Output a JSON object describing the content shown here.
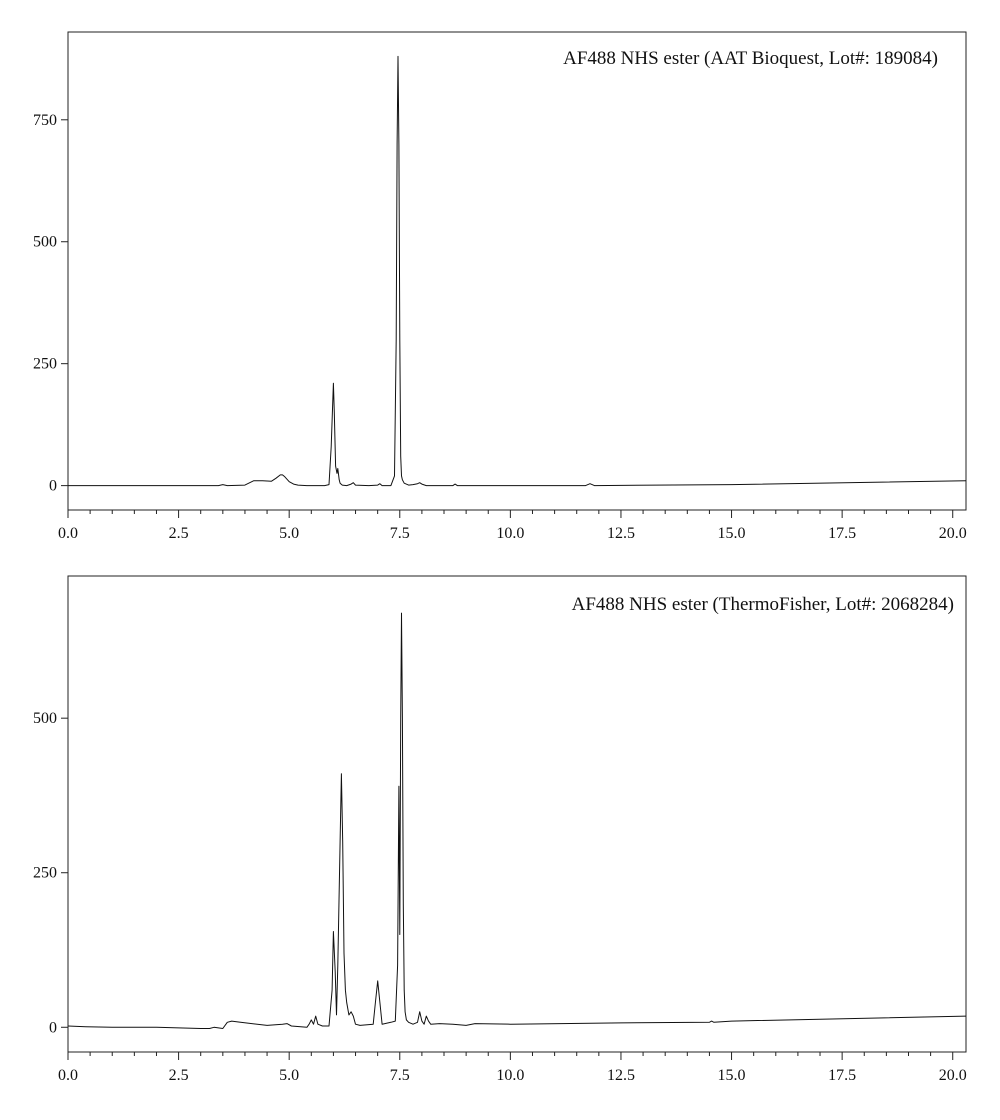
{
  "chart_data": [
    {
      "type": "line",
      "title": "AF488 NHS ester (AAT Bioquest, Lot#: 189084)",
      "xlabel": "",
      "ylabel": "",
      "xlim": [
        0,
        20.3
      ],
      "ylim": [
        -50,
        930
      ],
      "x_ticks": [
        0.0,
        2.5,
        5.0,
        7.5,
        10.0,
        12.5,
        15.0,
        17.5,
        20.0
      ],
      "x_tick_labels": [
        "0.0",
        "2.5",
        "5.0",
        "7.5",
        "10.0",
        "12.5",
        "15.0",
        "17.5",
        "20.0"
      ],
      "y_ticks": [
        0,
        250,
        500,
        750
      ],
      "y_tick_labels": [
        "0",
        "250",
        "500",
        "750"
      ],
      "grid": false,
      "series": [
        {
          "x": [
            0.0,
            3.4,
            3.5,
            3.6,
            4.0,
            4.2,
            4.4,
            4.6,
            4.7,
            4.8,
            4.85,
            4.9,
            5.0,
            5.1,
            5.2,
            5.4,
            5.6,
            5.8,
            5.9,
            5.95,
            6.0,
            6.02,
            6.05,
            6.08,
            6.1,
            6.13,
            6.15,
            6.2,
            6.3,
            6.4,
            6.45,
            6.5,
            6.8,
            7.0,
            7.05,
            7.1,
            7.3,
            7.38,
            7.42,
            7.44,
            7.46,
            7.48,
            7.5,
            7.52,
            7.54,
            7.56,
            7.6,
            7.7,
            7.8,
            7.9,
            7.95,
            8.0,
            8.1,
            8.7,
            8.75,
            8.8,
            11.7,
            11.8,
            11.9,
            15.0,
            20.3
          ],
          "y": [
            0,
            0,
            2,
            0,
            1,
            10,
            10,
            9,
            15,
            22,
            22,
            18,
            8,
            3,
            1,
            0,
            0,
            0,
            2,
            80,
            210,
            150,
            40,
            25,
            35,
            12,
            5,
            1,
            0,
            3,
            6,
            1,
            0,
            1,
            4,
            0,
            0,
            20,
            300,
            700,
            880,
            700,
            300,
            60,
            20,
            12,
            5,
            1,
            2,
            4,
            6,
            3,
            0,
            0,
            3,
            0,
            0,
            4,
            0,
            2,
            10
          ]
        }
      ]
    },
    {
      "type": "line",
      "title": "AF488 NHS ester (ThermoFisher, Lot#: 2068284)",
      "xlabel": "",
      "ylabel": "",
      "xlim": [
        0,
        20.3
      ],
      "ylim": [
        -40,
        730
      ],
      "x_ticks": [
        0.0,
        2.5,
        5.0,
        7.5,
        10.0,
        12.5,
        15.0,
        17.5,
        20.0
      ],
      "x_tick_labels": [
        "0.0",
        "2.5",
        "5.0",
        "7.5",
        "10.0",
        "12.5",
        "15.0",
        "17.5",
        "20.0"
      ],
      "y_ticks": [
        0,
        250,
        500
      ],
      "y_tick_labels": [
        "0",
        "250",
        "500"
      ],
      "grid": false,
      "series": [
        {
          "x": [
            0.0,
            0.4,
            1.0,
            2.0,
            3.0,
            3.2,
            3.3,
            3.5,
            3.6,
            3.7,
            3.9,
            4.5,
            4.85,
            4.95,
            5.05,
            5.4,
            5.45,
            5.5,
            5.55,
            5.6,
            5.65,
            5.75,
            5.9,
            5.97,
            6.0,
            6.04,
            6.07,
            6.1,
            6.15,
            6.18,
            6.21,
            6.24,
            6.27,
            6.3,
            6.35,
            6.4,
            6.45,
            6.5,
            6.6,
            6.9,
            6.95,
            7.0,
            7.05,
            7.1,
            7.3,
            7.4,
            7.45,
            7.48,
            7.5,
            7.52,
            7.54,
            7.56,
            7.58,
            7.6,
            7.62,
            7.65,
            7.7,
            7.8,
            7.9,
            7.95,
            8.0,
            8.05,
            8.1,
            8.15,
            8.2,
            8.4,
            8.7,
            9.0,
            9.2,
            10.0,
            12.5,
            14.5,
            14.55,
            14.6,
            15.0,
            20.3
          ],
          "y": [
            2,
            1,
            0,
            0,
            -2,
            -2,
            0,
            -2,
            8,
            10,
            8,
            3,
            5,
            6,
            2,
            0,
            5,
            12,
            5,
            18,
            5,
            2,
            2,
            60,
            155,
            90,
            20,
            100,
            300,
            410,
            300,
            120,
            60,
            40,
            20,
            25,
            18,
            5,
            3,
            5,
            40,
            75,
            40,
            5,
            8,
            10,
            100,
            390,
            150,
            500,
            670,
            500,
            200,
            60,
            25,
            12,
            8,
            5,
            8,
            25,
            10,
            5,
            18,
            10,
            5,
            6,
            5,
            3,
            6,
            5,
            7,
            8,
            10,
            8,
            10,
            18
          ]
        }
      ]
    }
  ]
}
